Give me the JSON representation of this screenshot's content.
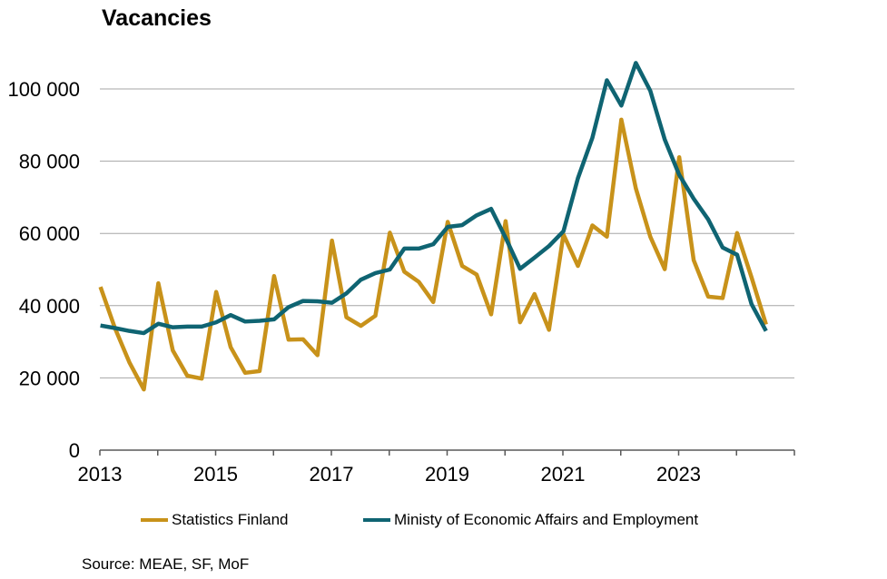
{
  "title": "Vacancies",
  "source": "Source: MEAE, SF, MoF",
  "chart_data": {
    "type": "line",
    "title": "Vacancies",
    "xlabel": "",
    "ylabel": "",
    "xlim": [
      2013.0,
      2025.0
    ],
    "ylim": [
      0,
      100000
    ],
    "y_ticks": [
      0,
      20000,
      40000,
      60000,
      80000,
      100000
    ],
    "y_tick_labels": [
      "0",
      "20 000",
      "40 000",
      "60 000",
      "80 000",
      "100 000"
    ],
    "x_tick_labels": [
      "2013",
      "2015",
      "2017",
      "2019",
      "2021",
      "2023"
    ],
    "grid": "horizontal",
    "legend_position": "bottom",
    "x": [
      "2013Q1",
      "2013Q2",
      "2013Q3",
      "2013Q4",
      "2014Q1",
      "2014Q2",
      "2014Q3",
      "2014Q4",
      "2015Q1",
      "2015Q2",
      "2015Q3",
      "2015Q4",
      "2016Q1",
      "2016Q2",
      "2016Q3",
      "2016Q4",
      "2017Q1",
      "2017Q2",
      "2017Q3",
      "2017Q4",
      "2018Q1",
      "2018Q2",
      "2018Q3",
      "2018Q4",
      "2019Q1",
      "2019Q2",
      "2019Q3",
      "2019Q4",
      "2020Q1",
      "2020Q2",
      "2020Q3",
      "2020Q4",
      "2021Q1",
      "2021Q2",
      "2021Q3",
      "2021Q4",
      "2022Q1",
      "2022Q2",
      "2022Q3",
      "2022Q4",
      "2023Q1",
      "2023Q2",
      "2023Q3",
      "2023Q4",
      "2024Q1",
      "2024Q2",
      "2024Q3"
    ],
    "series": [
      {
        "name": "Statistics Finland",
        "color": "#C8921A",
        "values": [
          45200,
          33800,
          24300,
          16800,
          46200,
          27600,
          20600,
          19800,
          43800,
          28500,
          21400,
          21900,
          48200,
          30600,
          30700,
          26300,
          58000,
          36800,
          34400,
          37200,
          60200,
          49400,
          46600,
          41000,
          63200,
          51000,
          48600,
          37600,
          63400,
          35400,
          43200,
          33300,
          59700,
          51000,
          62200,
          59100,
          91500,
          72500,
          59100,
          50100,
          81100,
          52600,
          42500,
          42100,
          60100,
          47800,
          34800
        ]
      },
      {
        "name": "Ministy of Economic Affairs and Employment",
        "color": "#0F6472",
        "values": [
          34500,
          33800,
          33000,
          32400,
          35000,
          34000,
          34200,
          34200,
          35400,
          37400,
          35600,
          35800,
          36200,
          39600,
          41300,
          41200,
          40800,
          43400,
          47200,
          49000,
          50000,
          55800,
          55800,
          57000,
          61800,
          62300,
          65000,
          66800,
          58800,
          50200,
          53300,
          56500,
          60600,
          75300,
          86500,
          102400,
          95400,
          107200,
          99500,
          86000,
          76200,
          69600,
          63900,
          56100,
          54100,
          40400,
          33000
        ]
      }
    ]
  }
}
